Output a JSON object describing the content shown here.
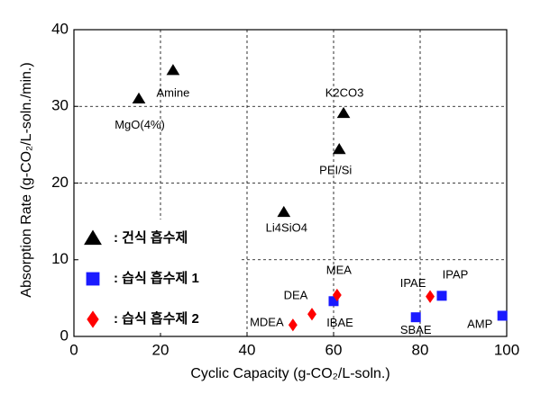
{
  "chart_data": {
    "type": "scatter",
    "x_label": "Cyclic Capacity (g-CO₂/L-soln.)",
    "y_label": "Absorption Rate (g-CO₂/L-soln./min.)",
    "xlim": [
      0,
      100
    ],
    "xticks": [
      0,
      20,
      40,
      60,
      80,
      100
    ],
    "ylim": [
      0,
      40
    ],
    "yticks": [
      0,
      10,
      20,
      30,
      40
    ],
    "grid": true,
    "legend": "lower left",
    "series": [
      {
        "name": ": 건식 흡수제",
        "color": "#000000",
        "marker": "triangle",
        "labels": [
          "MgO(4%)",
          "Amine",
          "K2CO3",
          "PEI/Si",
          "Li4SiO4"
        ],
        "x": [
          15,
          22.9,
          62.3,
          61.3,
          48.5
        ],
        "values": [
          31,
          34.7,
          29.1,
          24.4,
          16.2
        ]
      },
      {
        "name": ": 습식 흡수제 1",
        "color": "#1a1aff",
        "marker": "square",
        "labels": [
          "IBAE",
          "SBAE",
          "IPAP",
          "AMP"
        ],
        "x": [
          60,
          79,
          85,
          99
        ],
        "values": [
          4.6,
          2.5,
          5.3,
          2.7
        ]
      },
      {
        "name": ": 습식 흡수제 2",
        "color": "#ff0000",
        "marker": "diamond",
        "labels": [
          "MDEA",
          "DEA",
          "MEA",
          "IPAE"
        ],
        "x": [
          50.6,
          55,
          60.8,
          82.3
        ],
        "values": [
          1.5,
          2.9,
          5.4,
          5.2
        ]
      }
    ]
  }
}
